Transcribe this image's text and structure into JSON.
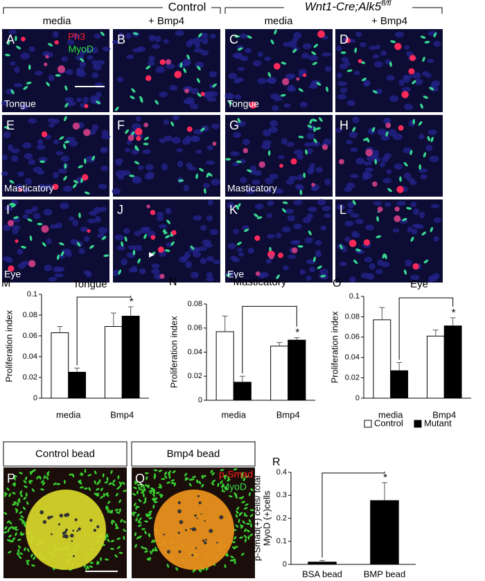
{
  "figure": {
    "header": {
      "control": "Control",
      "mutant_main": "Wnt1-Cre;Alk5",
      "mutant_sup": "fl/fl",
      "conditions": [
        "media",
        "+ Bmp4",
        "media",
        "+ Bmp4"
      ]
    },
    "panels": {
      "letters": [
        "A",
        "B",
        "C",
        "D",
        "E",
        "F",
        "G",
        "H",
        "I",
        "J",
        "K",
        "L"
      ],
      "tissues": [
        "Tongue",
        "Masticatory",
        "Eye"
      ],
      "stains": [
        "Ph3",
        "MyoD"
      ]
    },
    "beads": {
      "letters": [
        "P",
        "Q"
      ],
      "titles": [
        "Control bead",
        "Bmp4 bead"
      ],
      "stains": [
        "p-Smad",
        "MyoD"
      ]
    }
  },
  "chart_data": [
    {
      "type": "bar",
      "panel": "M",
      "title": "Tongue",
      "y_label": [
        "Proliferation index"
      ],
      "categories": [
        "media",
        "Bmp4"
      ],
      "series": [
        {
          "color": "#ffffff",
          "values": [
            0.063,
            0.069
          ],
          "errors": [
            0.006,
            0.013
          ]
        },
        {
          "color": "#000000",
          "values": [
            0.025,
            0.079
          ],
          "errors": [
            0.004,
            0.009
          ]
        }
      ],
      "ylim": [
        0,
        0.1
      ],
      "yticks": [
        0,
        0.02,
        0.04,
        0.06,
        0.08,
        0.1
      ],
      "annotations": [
        "*"
      ]
    },
    {
      "type": "bar",
      "panel": "N",
      "title": "Masticatory",
      "y_label": [
        "Proliferation index"
      ],
      "categories": [
        "media",
        "Bmp4"
      ],
      "series": [
        {
          "color": "#ffffff",
          "values": [
            0.057,
            0.045
          ],
          "errors": [
            0.013,
            0.003
          ]
        },
        {
          "color": "#000000",
          "values": [
            0.015,
            0.05
          ],
          "errors": [
            0.005,
            0.002
          ]
        }
      ],
      "ylim": [
        0,
        0.08
      ],
      "yticks": [
        0,
        0.02,
        0.04,
        0.06,
        0.08
      ],
      "annotations": [
        "*"
      ]
    },
    {
      "type": "bar",
      "panel": "O",
      "title": "Eye",
      "y_label": [
        "Proliferation index"
      ],
      "categories": [
        "media",
        "Bmp4"
      ],
      "series": [
        {
          "name": "Control",
          "color": "#ffffff",
          "values": [
            0.077,
            0.061
          ],
          "errors": [
            0.012,
            0.006
          ]
        },
        {
          "name": "Mutant",
          "color": "#000000",
          "values": [
            0.027,
            0.071
          ],
          "errors": [
            0.008,
            0.008
          ]
        }
      ],
      "ylim": [
        0,
        0.1
      ],
      "yticks": [
        0,
        0.02,
        0.04,
        0.06,
        0.08,
        0.1
      ],
      "annotations": [
        "*"
      ]
    },
    {
      "type": "bar",
      "panel": "R",
      "y_label": [
        "p-Smad(+) cells/ total",
        "MyoD (+)cells"
      ],
      "categories": [
        "BSA bead",
        "BMP bead"
      ],
      "series": [
        {
          "color": "#000000",
          "values": [
            0.01,
            0.277
          ],
          "errors": [
            0.007,
            0.078
          ]
        }
      ],
      "ylim": [
        0,
        0.4
      ],
      "yticks": [
        0,
        0.1,
        0.2,
        0.3,
        0.4
      ],
      "annotations": [
        "*"
      ]
    }
  ]
}
